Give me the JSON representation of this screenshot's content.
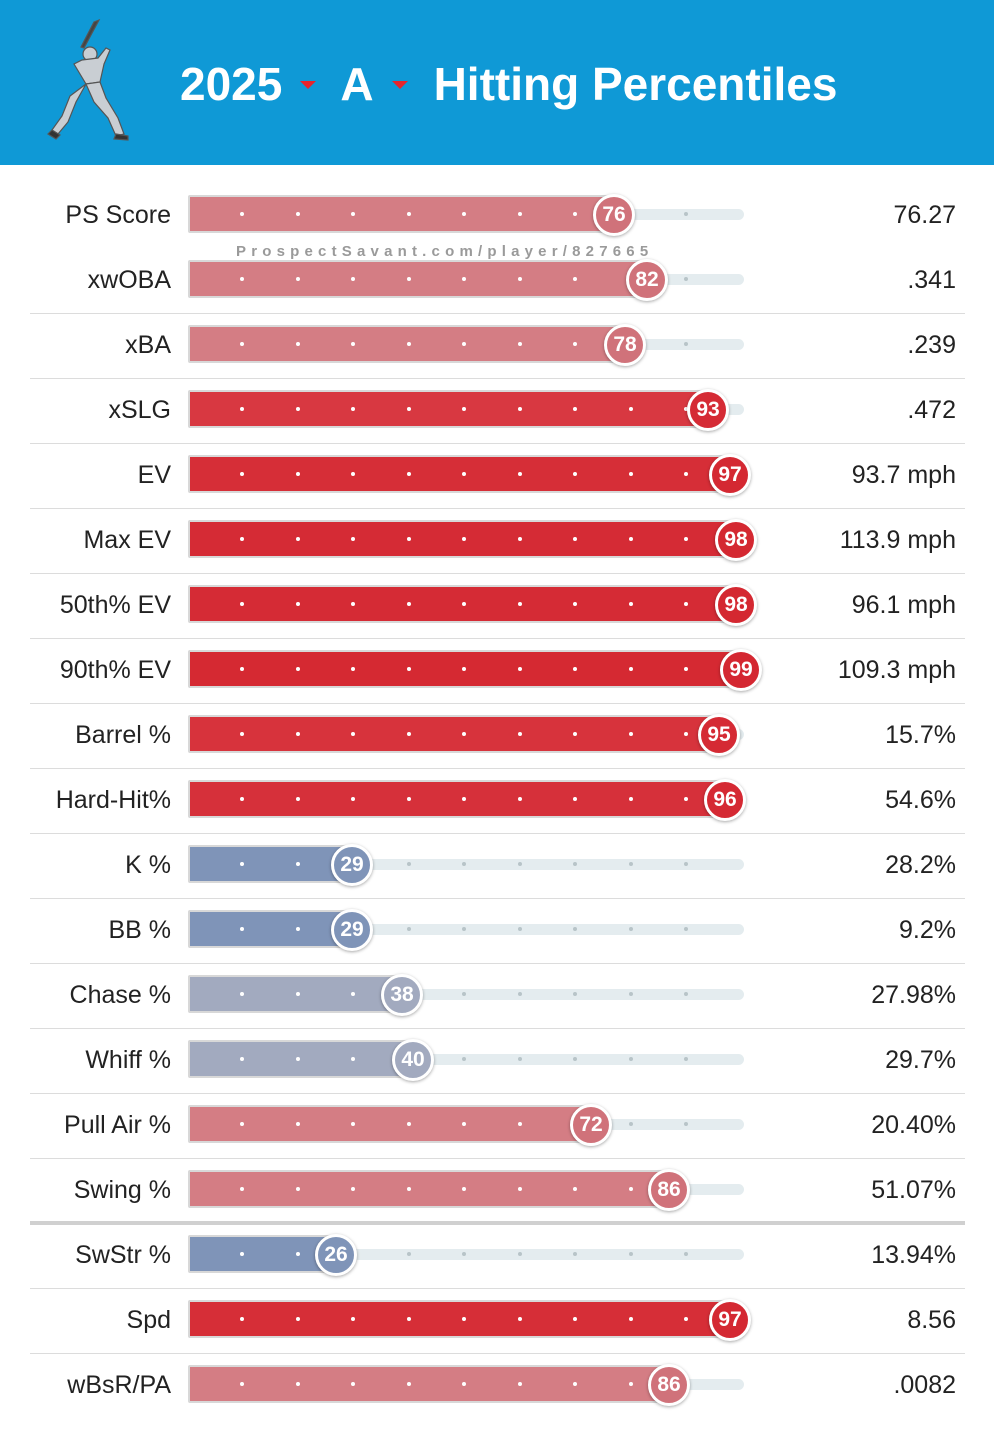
{
  "header": {
    "year": "2025",
    "level": "A",
    "title": "Hitting Percentiles",
    "background_color": "#0f99d6",
    "icon": "batter-silhouette-icon"
  },
  "watermark": "ProspectSavant.com/player/827665",
  "percentile_colors": {
    "high": "#d42630",
    "mid_high": "#cf6e76",
    "low": "#7f94b8",
    "mid_low": "#a2aabf"
  },
  "rows": [
    {
      "label": "PS Score",
      "percentile": 76,
      "value": "76.27"
    },
    {
      "label": "xwOBA",
      "percentile": 82,
      "value": ".341"
    },
    {
      "label": "xBA",
      "percentile": 78,
      "value": ".239"
    },
    {
      "label": "xSLG",
      "percentile": 93,
      "value": ".472"
    },
    {
      "label": "EV",
      "percentile": 97,
      "value": "93.7 mph"
    },
    {
      "label": "Max EV",
      "percentile": 98,
      "value": "113.9 mph"
    },
    {
      "label": "50th% EV",
      "percentile": 98,
      "value": "96.1 mph"
    },
    {
      "label": "90th% EV",
      "percentile": 99,
      "value": "109.3 mph"
    },
    {
      "label": "Barrel %",
      "percentile": 95,
      "value": "15.7%"
    },
    {
      "label": "Hard-Hit%",
      "percentile": 96,
      "value": "54.6%"
    },
    {
      "label": "K %",
      "percentile": 29,
      "value": "28.2%"
    },
    {
      "label": "BB %",
      "percentile": 29,
      "value": "9.2%"
    },
    {
      "label": "Chase %",
      "percentile": 38,
      "value": "27.98%"
    },
    {
      "label": "Whiff %",
      "percentile": 40,
      "value": "29.7%"
    },
    {
      "label": "Pull Air %",
      "percentile": 72,
      "value": "20.40%"
    },
    {
      "label": "Swing %",
      "percentile": 86,
      "value": "51.07%"
    },
    {
      "label": "SwStr %",
      "percentile": 26,
      "value": "13.94%"
    },
    {
      "label": "Spd",
      "percentile": 97,
      "value": "8.56"
    },
    {
      "label": "wBsR/PA",
      "percentile": 86,
      "value": ".0082"
    }
  ]
}
